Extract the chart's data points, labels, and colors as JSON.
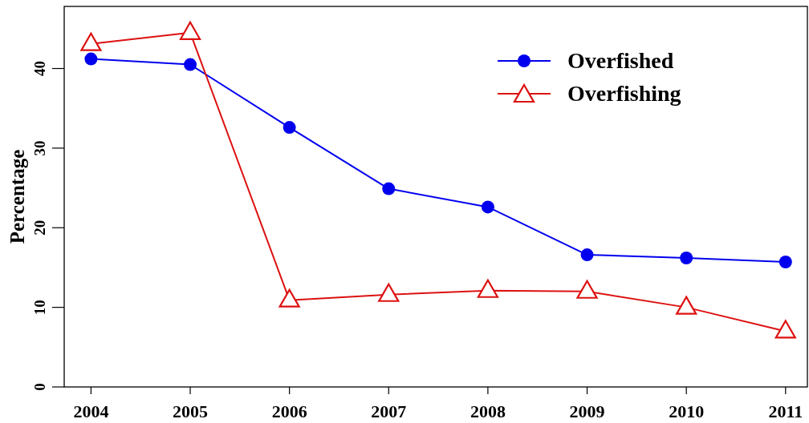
{
  "chart_data": {
    "type": "line",
    "ylabel": "Percentage",
    "x": [
      2004,
      2005,
      2006,
      2007,
      2008,
      2009,
      2010,
      2011
    ],
    "xlim": [
      2003.73,
      2011.22
    ],
    "xticks": [
      2004,
      2005,
      2006,
      2007,
      2008,
      2009,
      2010,
      2011
    ],
    "ylim": [
      0,
      47.8
    ],
    "yticks": [
      0,
      10,
      20,
      30,
      40
    ],
    "grid": false,
    "legend": "top right",
    "series": [
      {
        "name": "Overfished",
        "color": "#0000ee",
        "marker": "circle",
        "values": [
          41.2,
          40.5,
          32.6,
          24.9,
          22.6,
          16.6,
          16.2,
          15.7
        ]
      },
      {
        "name": "Overfishing",
        "color": "#dd1111",
        "marker": "triangle",
        "values": [
          43.1,
          44.5,
          10.9,
          11.6,
          12.1,
          12.0,
          10.0,
          7.0
        ]
      }
    ]
  }
}
